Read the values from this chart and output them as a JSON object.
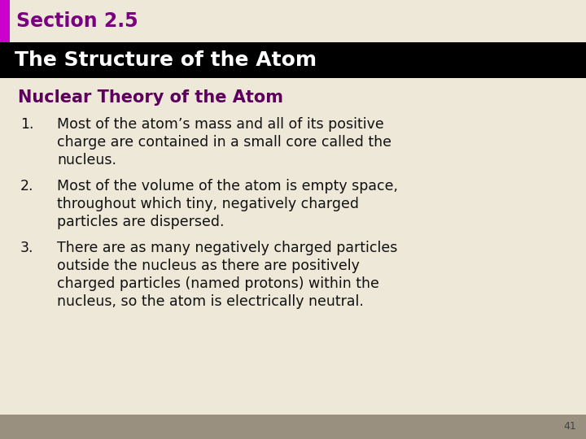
{
  "section_label": "Section 2.5",
  "section_label_color": "#7b0080",
  "header_text": "The Structure of the Atom",
  "header_bg_color": "#000000",
  "header_text_color": "#ffffff",
  "subtitle": "Nuclear Theory of the Atom",
  "subtitle_color": "#5c005c",
  "bg_color": "#ede8d8",
  "footer_bg_color": "#9a9080",
  "page_number": "41",
  "accent_bar_color": "#cc00cc",
  "body_items": [
    {
      "number": "1.",
      "lines": [
        "Most of the atom’s mass and all of its positive",
        "charge are contained in a small core called the",
        "nucleus."
      ]
    },
    {
      "number": "2.",
      "lines": [
        "Most of the volume of the atom is empty space,",
        "throughout which tiny, negatively charged",
        "particles are dispersed."
      ]
    },
    {
      "number": "3.",
      "lines": [
        "There are as many negatively charged particles",
        "outside the nucleus as there are positively",
        "charged particles (named protons) within the",
        "nucleus, so the atom is electrically neutral."
      ]
    }
  ],
  "body_text_color": "#111111",
  "fig_width": 7.2,
  "fig_height": 5.4,
  "dpi": 100
}
